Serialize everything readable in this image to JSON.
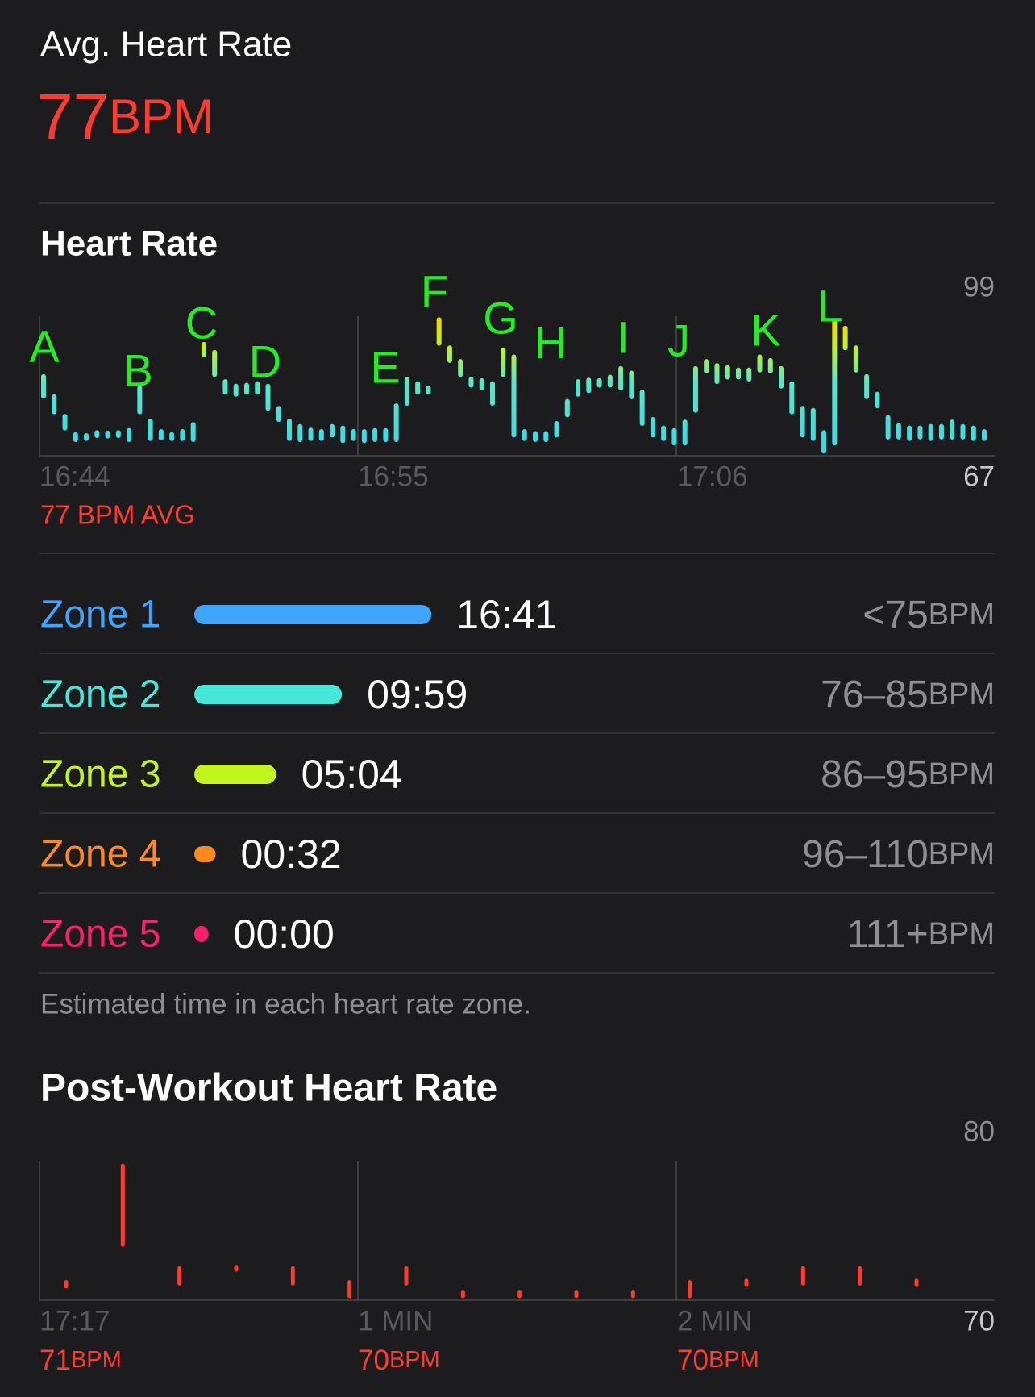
{
  "header": {
    "title": "Avg. Heart Rate",
    "value": 77,
    "unit": "BPM"
  },
  "heart_rate_chart": {
    "type": "range-bar",
    "title": "Heart Rate",
    "ylim": [
      67,
      99
    ],
    "yticks": [
      99,
      67
    ],
    "xticks": [
      "16:44",
      "16:55",
      "17:06"
    ],
    "avg_label": "77 BPM AVG",
    "values": [
      [
        78.8,
        82.7
      ],
      [
        75.7,
        78.7
      ],
      [
        72.5,
        74.8
      ],
      [
        70.2,
        71.2
      ],
      [
        70.4,
        71.0
      ],
      [
        71.0,
        71.6
      ],
      [
        70.9,
        71.5
      ],
      [
        71.0,
        71.6
      ],
      [
        70.2,
        72.0
      ],
      [
        75.7,
        80.4
      ],
      [
        70.4,
        73.9
      ],
      [
        70.5,
        71.8
      ],
      [
        70.4,
        71.2
      ],
      [
        70.4,
        71.8
      ],
      [
        70.2,
        73.2
      ],
      [
        87.0,
        89.1
      ],
      [
        83.1,
        87.5
      ],
      [
        79.6,
        81.7
      ],
      [
        79.2,
        80.8
      ],
      [
        79.6,
        81.0
      ],
      [
        79.6,
        81.3
      ],
      [
        76.4,
        80.8
      ],
      [
        74.2,
        76.4
      ],
      [
        70.4,
        73.9
      ],
      [
        70.2,
        72.8
      ],
      [
        70.4,
        72.1
      ],
      [
        70.4,
        71.8
      ],
      [
        71.1,
        72.8
      ],
      [
        70.0,
        72.5
      ],
      [
        70.4,
        71.8
      ],
      [
        70.0,
        71.8
      ],
      [
        70.2,
        72.0
      ],
      [
        70.2,
        72.0
      ],
      [
        70.2,
        76.9
      ],
      [
        77.4,
        82.2
      ],
      [
        79.6,
        81.3
      ],
      [
        79.6,
        80.4
      ],
      [
        89.3,
        94.0
      ],
      [
        85.9,
        88.4
      ],
      [
        83.1,
        85.7
      ],
      [
        81.0,
        82.2
      ],
      [
        80.4,
        81.9
      ],
      [
        77.4,
        81.3
      ],
      [
        83.1,
        88.0
      ],
      [
        71.1,
        86.6
      ],
      [
        70.4,
        71.8
      ],
      [
        70.2,
        71.4
      ],
      [
        70.2,
        71.4
      ],
      [
        71.1,
        73.4
      ],
      [
        75.1,
        77.8
      ],
      [
        79.2,
        81.7
      ],
      [
        79.9,
        82.0
      ],
      [
        81.0,
        81.9
      ],
      [
        81.0,
        82.6
      ],
      [
        80.4,
        84.3
      ],
      [
        78.7,
        83.4
      ],
      [
        73.4,
        79.6
      ],
      [
        71.1,
        74.2
      ],
      [
        70.4,
        72.5
      ],
      [
        69.5,
        72.0
      ],
      [
        69.5,
        73.7
      ],
      [
        76.0,
        84.3
      ],
      [
        83.8,
        85.7
      ],
      [
        81.7,
        84.9
      ],
      [
        82.6,
        84.5
      ],
      [
        82.6,
        84.0
      ],
      [
        82.2,
        84.0
      ],
      [
        84.0,
        86.6
      ],
      [
        83.8,
        85.9
      ],
      [
        80.8,
        84.3
      ],
      [
        75.7,
        81.3
      ],
      [
        71.1,
        76.4
      ],
      [
        70.4,
        76.0
      ],
      [
        67.9,
        71.6
      ],
      [
        69.5,
        93.7
      ],
      [
        88.4,
        92.3
      ],
      [
        84.0,
        88.4
      ],
      [
        78.7,
        82.7
      ],
      [
        76.9,
        79.2
      ],
      [
        70.7,
        74.6
      ],
      [
        70.7,
        73.0
      ],
      [
        70.4,
        72.5
      ],
      [
        70.7,
        72.5
      ],
      [
        70.4,
        72.8
      ],
      [
        70.7,
        72.8
      ],
      [
        70.7,
        73.7
      ],
      [
        70.7,
        72.8
      ],
      [
        70.4,
        72.5
      ],
      [
        70.4,
        71.8
      ]
    ],
    "annotations": [
      "A",
      "B",
      "C",
      "D",
      "E",
      "F",
      "G",
      "H",
      "I",
      "J",
      "K",
      "L"
    ],
    "annotation_color": "#22ee22"
  },
  "zones": {
    "rows": [
      {
        "name": "Zone 1",
        "time": "16:41",
        "range": "<75",
        "unit": "BPM",
        "color": "#3fa4fa"
      },
      {
        "name": "Zone 2",
        "time": "09:59",
        "range": "76–85",
        "unit": "BPM",
        "color": "#45e8d8"
      },
      {
        "name": "Zone 3",
        "time": "05:04",
        "range": "86–95",
        "unit": "BPM",
        "color": "#c2f51c"
      },
      {
        "name": "Zone 4",
        "time": "00:32",
        "range": "96–110",
        "unit": "BPM",
        "color": "#ff8a1c"
      },
      {
        "name": "Zone 5",
        "time": "00:00",
        "range": "111+",
        "unit": "BPM",
        "color": "#ff1f6e"
      }
    ],
    "footnote": "Estimated time in each heart rate zone."
  },
  "post_workout_chart": {
    "type": "range-bar",
    "title": "Post-Workout Heart Rate",
    "ylim": [
      70,
      80
    ],
    "yticks": [
      80,
      70
    ],
    "color": "#ff3b30",
    "xticks": [
      {
        "label": "17:17",
        "bpm": 71,
        "unit": "BPM"
      },
      {
        "label": "1 MIN",
        "bpm": 70,
        "unit": "BPM"
      },
      {
        "label": "2 MIN",
        "bpm": 70,
        "unit": "BPM"
      }
    ],
    "values": [
      [
        71.0,
        71.3
      ],
      [
        74.0,
        79.7
      ],
      [
        71.2,
        72.3
      ],
      [
        72.2,
        72.4
      ],
      [
        71.2,
        72.3
      ],
      [
        70.3,
        71.3
      ],
      [
        71.2,
        72.3
      ],
      [
        70.3,
        70.6
      ],
      [
        70.3,
        70.6
      ],
      [
        70.3,
        70.6
      ],
      [
        70.3,
        70.6
      ],
      [
        70.3,
        71.3
      ],
      [
        71.1,
        71.4
      ],
      [
        71.2,
        72.3
      ],
      [
        71.2,
        72.3
      ],
      [
        71.1,
        71.4
      ]
    ]
  }
}
